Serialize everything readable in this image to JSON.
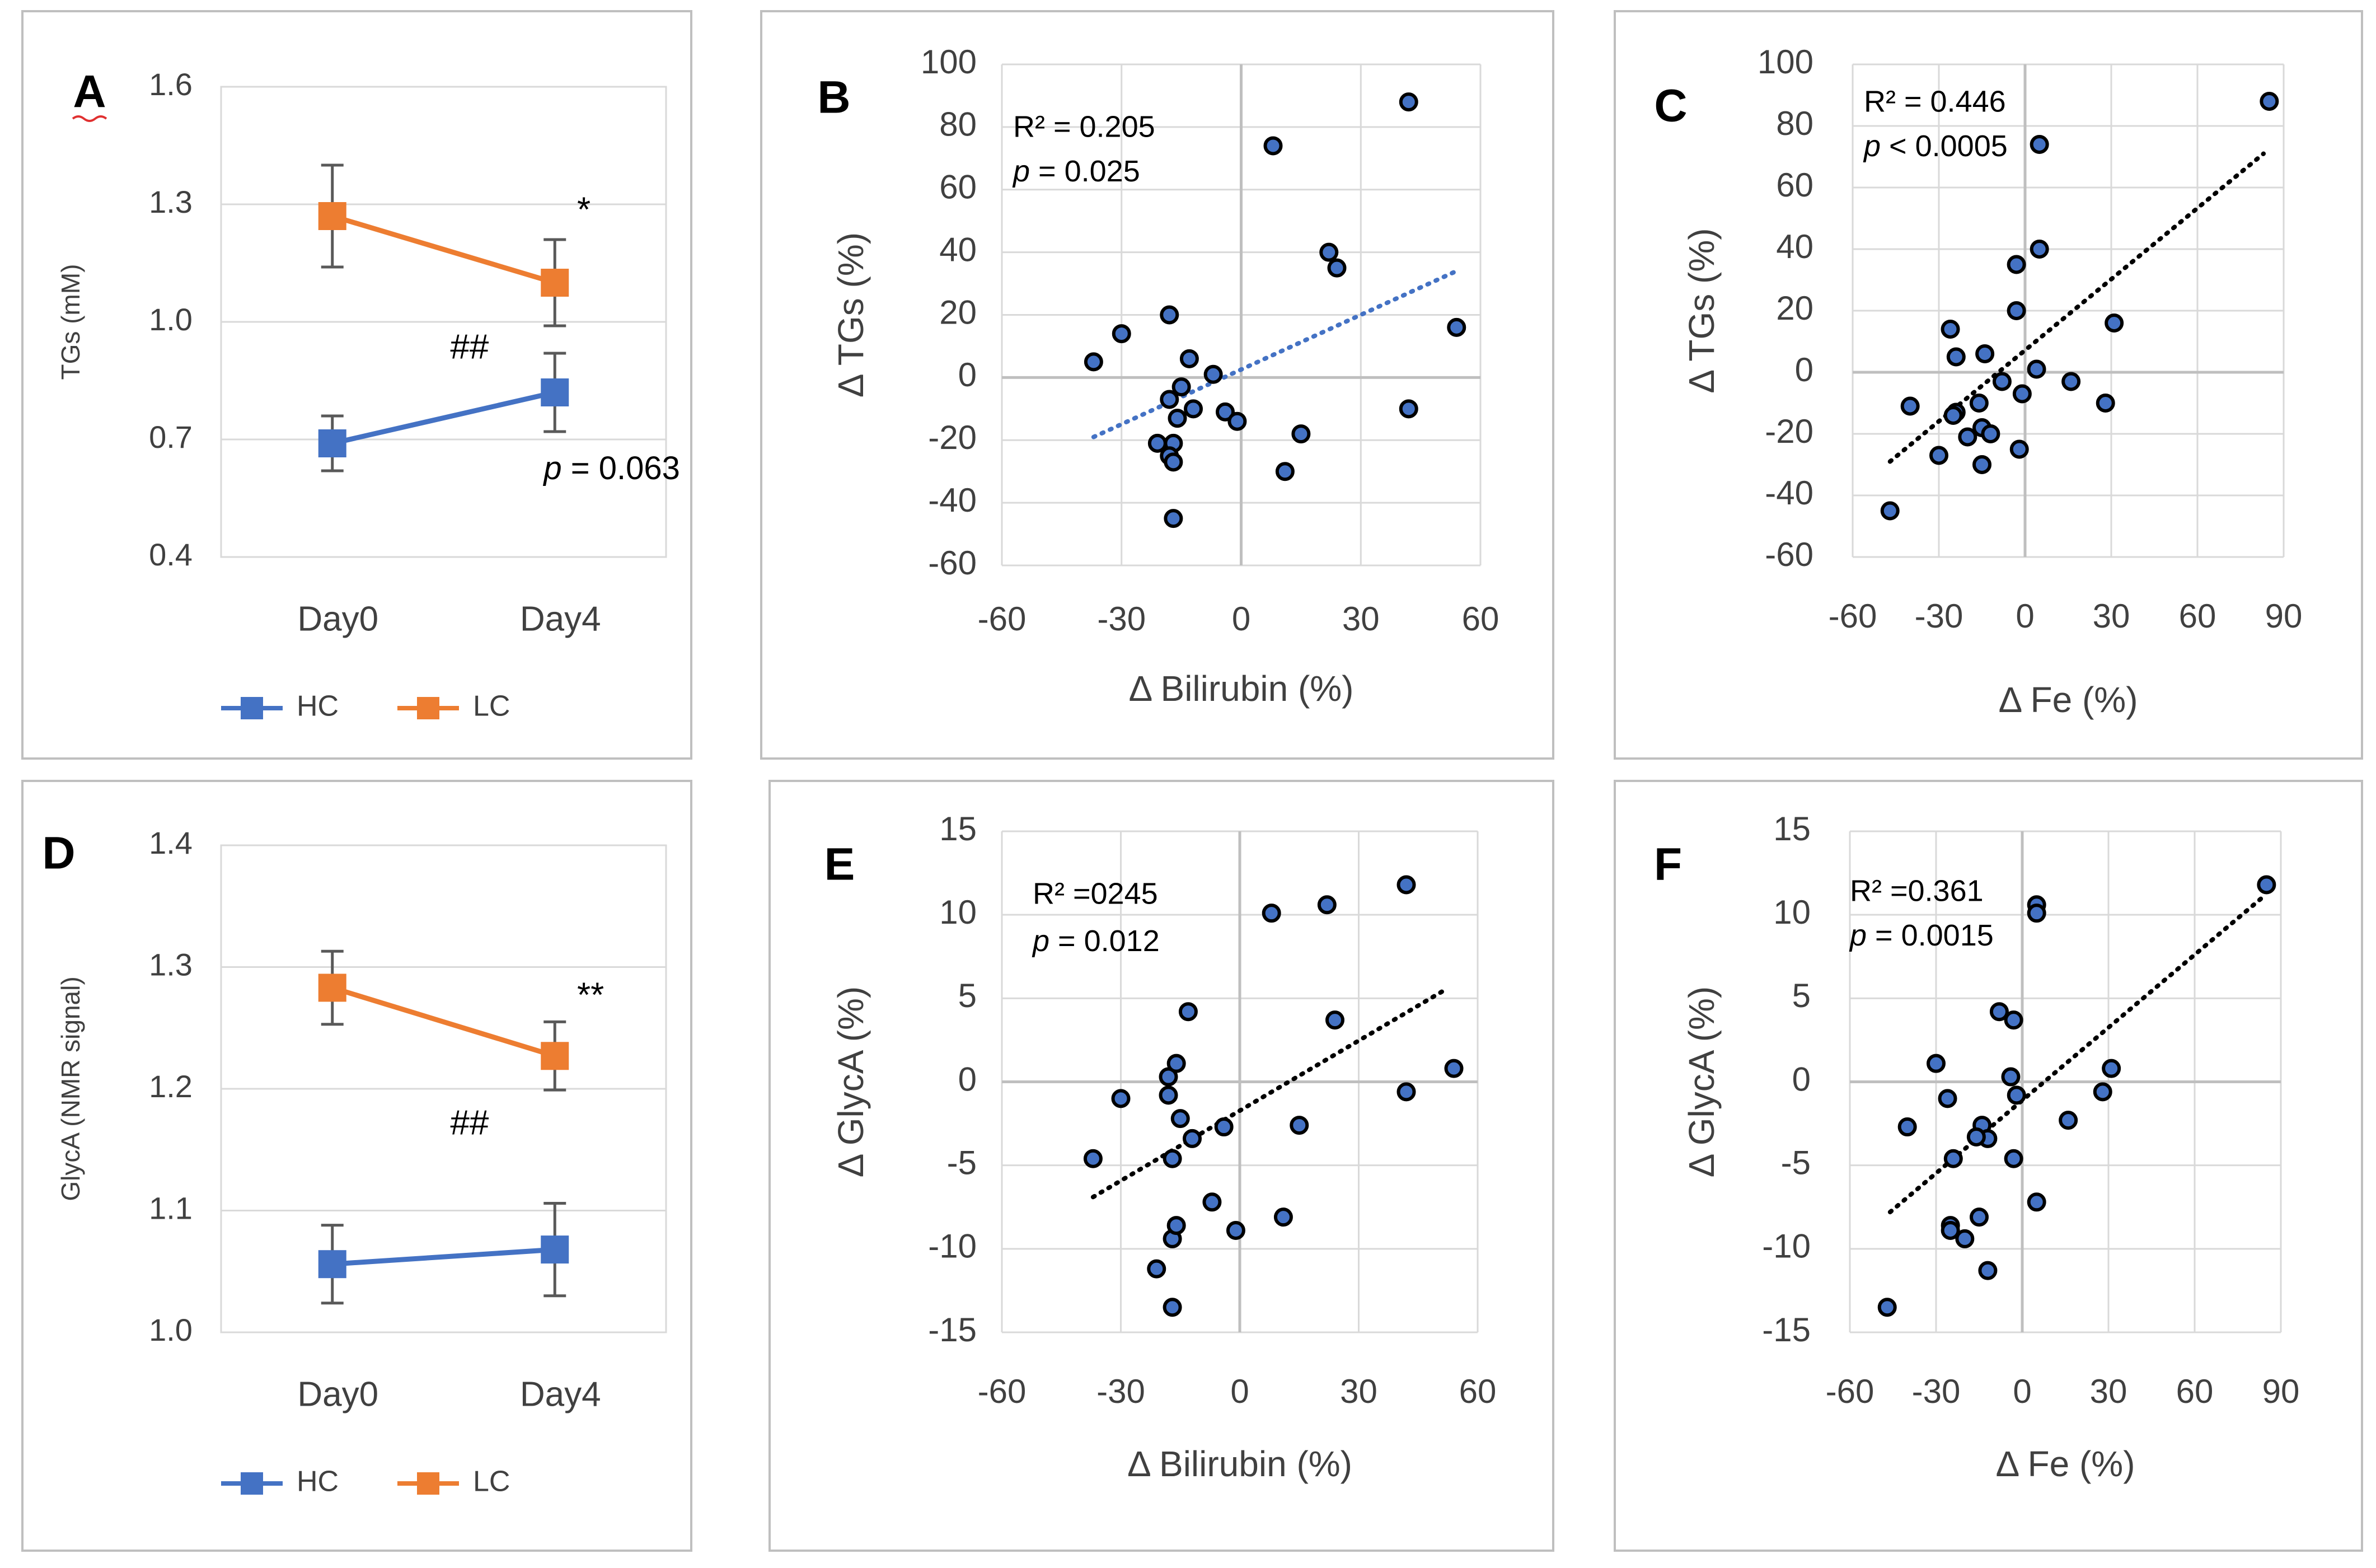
{
  "colors": {
    "hc": "#4472C4",
    "lc": "#ED7D31",
    "axis": "#BFBFBF",
    "grid": "#D9D9D9",
    "text": "#404040",
    "frame": "#BFBFBF",
    "marker_fill": "#4472C4",
    "marker_edge": "#000000"
  },
  "chart_data": [
    {
      "id": "A",
      "type": "line",
      "letter": "A",
      "ylabel": "TGs (mM)",
      "ylim": [
        0.4,
        1.6
      ],
      "yticks": [
        {
          "v": 0.4,
          "label": "0.4"
        },
        {
          "v": 0.7,
          "label": "0.7"
        },
        {
          "v": 1.0,
          "label": "1.0"
        },
        {
          "v": 1.3,
          "label": "1.3"
        },
        {
          "v": 1.6,
          "label": "1.6"
        }
      ],
      "categories": [
        "Day0",
        "Day4"
      ],
      "series": [
        {
          "name": "HC",
          "color_key": "hc",
          "values": [
            0.69,
            0.82
          ],
          "err": [
            0.07,
            0.1
          ]
        },
        {
          "name": "LC",
          "color_key": "lc",
          "values": [
            1.27,
            1.1
          ],
          "err": [
            0.13,
            0.11
          ]
        }
      ],
      "annotations": [
        {
          "text": "*",
          "x": 1.6,
          "y": 1.28,
          "italic": false
        },
        {
          "text": "##",
          "x": 1.03,
          "y": 0.93,
          "italic": false
        },
        {
          "text": "p",
          "rest": " = 0.063",
          "x": 1.45,
          "y": 0.62,
          "italic": true
        }
      ],
      "legend": [
        "HC",
        "LC"
      ]
    },
    {
      "id": "B",
      "type": "scatter",
      "letter": "B",
      "xlabel": "Δ Bilirubin (%)",
      "ylabel": "Δ TGs  (%)",
      "xlim": [
        -60,
        60
      ],
      "ylim": [
        -60,
        100
      ],
      "xticks": [
        {
          "v": -60,
          "label": "-60"
        },
        {
          "v": -30,
          "label": "-30"
        },
        {
          "v": 0,
          "label": "0"
        },
        {
          "v": 30,
          "label": "30"
        },
        {
          "v": 60,
          "label": "60"
        }
      ],
      "yticks": [
        {
          "v": -60,
          "label": "-60"
        },
        {
          "v": -40,
          "label": "-40"
        },
        {
          "v": -20,
          "label": "-20"
        },
        {
          "v": 0,
          "label": "0"
        },
        {
          "v": 20,
          "label": "20"
        },
        {
          "v": 40,
          "label": "40"
        },
        {
          "v": 60,
          "label": "60"
        },
        {
          "v": 80,
          "label": "80"
        },
        {
          "v": 100,
          "label": "100"
        }
      ],
      "points": [
        [
          42,
          88
        ],
        [
          8,
          74
        ],
        [
          22,
          40
        ],
        [
          24,
          35
        ],
        [
          54,
          16
        ],
        [
          -30,
          14
        ],
        [
          -18,
          20
        ],
        [
          -37,
          5
        ],
        [
          -13,
          6
        ],
        [
          -7,
          1
        ],
        [
          -15,
          -3
        ],
        [
          -18,
          -7
        ],
        [
          -12,
          -10
        ],
        [
          -16,
          -13
        ],
        [
          -4,
          -11
        ],
        [
          -1,
          -14
        ],
        [
          42,
          -10
        ],
        [
          15,
          -18
        ],
        [
          -21,
          -21
        ],
        [
          -17,
          -21
        ],
        [
          -18,
          -25
        ],
        [
          -17,
          -27
        ],
        [
          11,
          -30
        ],
        [
          -17,
          -45
        ]
      ],
      "trend": {
        "x1": -37,
        "y1": -19,
        "x2": 54,
        "y2": 34,
        "color_key": "hc"
      },
      "stats": {
        "r2": "R² = 0.205",
        "p_rest": " = 0.025"
      }
    },
    {
      "id": "C",
      "type": "scatter",
      "letter": "C",
      "xlabel": "Δ Fe (%)",
      "ylabel": "Δ TGs  (%)",
      "xlim": [
        -60,
        90
      ],
      "ylim": [
        -60,
        100
      ],
      "xticks": [
        {
          "v": -60,
          "label": "-60"
        },
        {
          "v": -30,
          "label": "-30"
        },
        {
          "v": 0,
          "label": "0"
        },
        {
          "v": 30,
          "label": "30"
        },
        {
          "v": 60,
          "label": "60"
        },
        {
          "v": 90,
          "label": "90"
        }
      ],
      "yticks": [
        {
          "v": -60,
          "label": "-60"
        },
        {
          "v": -40,
          "label": "-40"
        },
        {
          "v": -20,
          "label": "-20"
        },
        {
          "v": 0,
          "label": "0"
        },
        {
          "v": 20,
          "label": "20"
        },
        {
          "v": 40,
          "label": "40"
        },
        {
          "v": 60,
          "label": "60"
        },
        {
          "v": 80,
          "label": "80"
        },
        {
          "v": 100,
          "label": "100"
        }
      ],
      "points": [
        [
          85,
          88
        ],
        [
          5,
          74
        ],
        [
          5,
          40
        ],
        [
          -3,
          35
        ],
        [
          -3,
          20
        ],
        [
          31,
          16
        ],
        [
          -26,
          14
        ],
        [
          -24,
          5
        ],
        [
          -14,
          6
        ],
        [
          4,
          1
        ],
        [
          -8,
          -3
        ],
        [
          -1,
          -7
        ],
        [
          16,
          -3
        ],
        [
          -16,
          -10
        ],
        [
          -40,
          -11
        ],
        [
          28,
          -10
        ],
        [
          -24,
          -13
        ],
        [
          -25,
          -14
        ],
        [
          -15,
          -18
        ],
        [
          -12,
          -20
        ],
        [
          -20,
          -21
        ],
        [
          -2,
          -25
        ],
        [
          -30,
          -27
        ],
        [
          -15,
          -30
        ],
        [
          -47,
          -45
        ]
      ],
      "trend": {
        "x1": -47,
        "y1": -29,
        "x2": 83,
        "y2": 71,
        "color_key": "marker_edge"
      },
      "stats": {
        "r2": "R² = 0.446",
        "p_rest": " < 0.0005"
      }
    },
    {
      "id": "D",
      "type": "line",
      "letter": "D",
      "ylabel": "GlycA (NMR signal)",
      "ylim": [
        1.0,
        1.4
      ],
      "yticks": [
        {
          "v": 1.0,
          "label": "1.0"
        },
        {
          "v": 1.1,
          "label": "1.1"
        },
        {
          "v": 1.2,
          "label": "1.2"
        },
        {
          "v": 1.3,
          "label": "1.3"
        },
        {
          "v": 1.4,
          "label": "1.4"
        }
      ],
      "categories": [
        "Day0",
        "Day4"
      ],
      "series": [
        {
          "name": "HC",
          "color_key": "hc",
          "values": [
            1.056,
            1.068
          ],
          "err": [
            0.032,
            0.038
          ]
        },
        {
          "name": "LC",
          "color_key": "lc",
          "values": [
            1.283,
            1.227
          ],
          "err": [
            0.03,
            0.028
          ]
        }
      ],
      "annotations": [
        {
          "text": "**",
          "x": 1.6,
          "y": 1.275,
          "italic": false
        },
        {
          "text": "##",
          "x": 1.03,
          "y": 1.17,
          "italic": false
        }
      ],
      "legend": [
        "HC",
        "LC"
      ]
    },
    {
      "id": "E",
      "type": "scatter",
      "letter": "E",
      "xlabel": "Δ Bilirubin (%)",
      "ylabel": "Δ GlycA  (%)",
      "xlim": [
        -60,
        60
      ],
      "ylim": [
        -15,
        15
      ],
      "xticks": [
        {
          "v": -60,
          "label": "-60"
        },
        {
          "v": -30,
          "label": "-30"
        },
        {
          "v": 0,
          "label": "0"
        },
        {
          "v": 30,
          "label": "30"
        },
        {
          "v": 60,
          "label": "60"
        }
      ],
      "yticks": [
        {
          "v": -15,
          "label": "-15"
        },
        {
          "v": -10,
          "label": "-10"
        },
        {
          "v": -5,
          "label": "-5"
        },
        {
          "v": 0,
          "label": "0"
        },
        {
          "v": 5,
          "label": "5"
        },
        {
          "v": 10,
          "label": "10"
        },
        {
          "v": 15,
          "label": "15"
        }
      ],
      "points": [
        [
          42,
          11.8
        ],
        [
          8,
          10.1
        ],
        [
          22,
          10.6
        ],
        [
          24,
          3.7
        ],
        [
          54,
          0.8
        ],
        [
          -30,
          -1
        ],
        [
          -18,
          -0.8
        ],
        [
          -37,
          -4.6
        ],
        [
          -13,
          4.2
        ],
        [
          -7,
          -7.2
        ],
        [
          -15,
          -2.2
        ],
        [
          -18,
          0.3
        ],
        [
          -12,
          -3.4
        ],
        [
          -16,
          1.1
        ],
        [
          -4,
          -2.7
        ],
        [
          -1,
          -8.9
        ],
        [
          42,
          -0.6
        ],
        [
          15,
          -2.6
        ],
        [
          -21,
          -11.2
        ],
        [
          -17,
          -4.6
        ],
        [
          -17,
          -9.4
        ],
        [
          -16,
          -8.6
        ],
        [
          11,
          -8.1
        ],
        [
          -17,
          -13.5
        ]
      ],
      "trend": {
        "x1": -37,
        "y1": -6.9,
        "x2": 51,
        "y2": 5.4,
        "color_key": "marker_edge"
      },
      "stats": {
        "r2": "R² =0245",
        "p_rest": " = 0.012"
      }
    },
    {
      "id": "F",
      "type": "scatter",
      "letter": "F",
      "xlabel": "Δ Fe (%)",
      "ylabel": "Δ GlycA  (%)",
      "xlim": [
        -60,
        90
      ],
      "ylim": [
        -15,
        15
      ],
      "xticks": [
        {
          "v": -60,
          "label": "-60"
        },
        {
          "v": -30,
          "label": "-30"
        },
        {
          "v": 0,
          "label": "0"
        },
        {
          "v": 30,
          "label": "30"
        },
        {
          "v": 60,
          "label": "60"
        },
        {
          "v": 90,
          "label": "90"
        }
      ],
      "yticks": [
        {
          "v": -15,
          "label": "-15"
        },
        {
          "v": -10,
          "label": "-10"
        },
        {
          "v": -5,
          "label": "-5"
        },
        {
          "v": 0,
          "label": "0"
        },
        {
          "v": 5,
          "label": "5"
        },
        {
          "v": 10,
          "label": "10"
        },
        {
          "v": 15,
          "label": "15"
        }
      ],
      "points": [
        [
          85,
          11.8
        ],
        [
          5,
          10.6
        ],
        [
          5,
          10.1
        ],
        [
          -3,
          3.7
        ],
        [
          -8,
          4.2
        ],
        [
          31,
          0.8
        ],
        [
          -30,
          1.1
        ],
        [
          -26,
          -1
        ],
        [
          -2,
          -0.8
        ],
        [
          -4,
          0.3
        ],
        [
          28,
          -0.6
        ],
        [
          16,
          -2.3
        ],
        [
          -14,
          -2.6
        ],
        [
          -12,
          -3.4
        ],
        [
          -16,
          -3.3
        ],
        [
          -24,
          -4.6
        ],
        [
          -3,
          -4.6
        ],
        [
          -40,
          -2.7
        ],
        [
          5,
          -7.2
        ],
        [
          -15,
          -8.1
        ],
        [
          -25,
          -8.6
        ],
        [
          -25,
          -8.9
        ],
        [
          -20,
          -9.4
        ],
        [
          -12,
          -11.3
        ],
        [
          -47,
          -13.5
        ]
      ],
      "trend": {
        "x1": -46,
        "y1": -7.8,
        "x2": 84,
        "y2": 11.1,
        "color_key": "marker_edge"
      },
      "stats": {
        "r2": "R² =0.361",
        "p_rest": " = 0.0015"
      }
    }
  ]
}
